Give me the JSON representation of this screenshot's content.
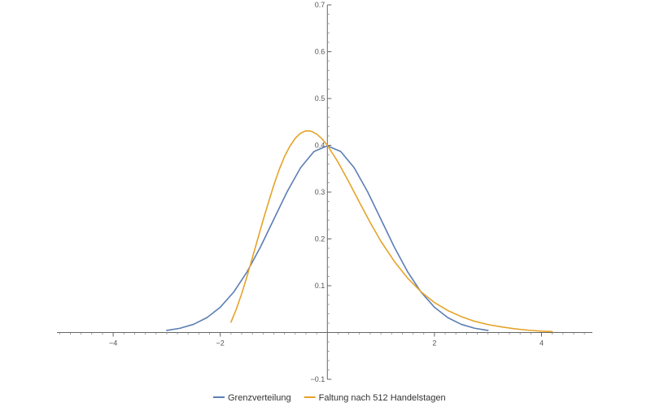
{
  "chart_data": {
    "type": "line",
    "title": "",
    "xlabel": "",
    "ylabel": "",
    "xlim": [
      -5.05,
      4.95
    ],
    "ylim": [
      -0.1,
      0.7
    ],
    "x_ticks": [
      -4,
      -2,
      2,
      4
    ],
    "x_tick_labels": [
      "-4",
      "-2",
      "2",
      "4"
    ],
    "y_ticks": [
      -0.1,
      0.1,
      0.2,
      0.3,
      0.4,
      0.5,
      0.6,
      0.7
    ],
    "y_tick_labels": [
      "-0.1",
      "0.1",
      "0.2",
      "0.3",
      "0.4",
      "0.5",
      "0.6",
      "0.7"
    ],
    "grid": false,
    "legend_position": "bottom",
    "series": [
      {
        "name": "Grenzverteilung",
        "color": "#5b7eb5",
        "x": [
          -3.0,
          -2.75,
          -2.5,
          -2.25,
          -2.0,
          -1.75,
          -1.5,
          -1.25,
          -1.0,
          -0.75,
          -0.5,
          -0.25,
          0.0,
          0.25,
          0.5,
          0.75,
          1.0,
          1.25,
          1.5,
          1.75,
          2.0,
          2.25,
          2.5,
          2.75,
          3.0
        ],
        "y": [
          0.0044,
          0.0091,
          0.0175,
          0.0317,
          0.054,
          0.0863,
          0.1295,
          0.1826,
          0.242,
          0.3011,
          0.3521,
          0.3867,
          0.3989,
          0.3867,
          0.3521,
          0.3011,
          0.242,
          0.1826,
          0.1295,
          0.0863,
          0.054,
          0.0317,
          0.0175,
          0.0091,
          0.0044
        ]
      },
      {
        "name": "Faltung nach 512 Handelstagen",
        "color": "#e5a32a",
        "x": [
          -1.8,
          -1.7,
          -1.6,
          -1.5,
          -1.4,
          -1.3,
          -1.2,
          -1.1,
          -1.0,
          -0.9,
          -0.8,
          -0.7,
          -0.6,
          -0.5,
          -0.4,
          -0.3,
          -0.2,
          -0.1,
          0.0,
          0.2,
          0.4,
          0.6,
          0.8,
          1.0,
          1.25,
          1.5,
          1.75,
          2.0,
          2.25,
          2.5,
          2.75,
          3.0,
          3.25,
          3.5,
          3.75,
          4.0,
          4.2
        ],
        "y": [
          0.022,
          0.05,
          0.083,
          0.12,
          0.16,
          0.2,
          0.24,
          0.278,
          0.315,
          0.348,
          0.376,
          0.398,
          0.415,
          0.426,
          0.431,
          0.43,
          0.424,
          0.414,
          0.4,
          0.364,
          0.322,
          0.278,
          0.235,
          0.195,
          0.152,
          0.116,
          0.087,
          0.064,
          0.047,
          0.034,
          0.024,
          0.017,
          0.012,
          0.008,
          0.005,
          0.003,
          0.002
        ]
      }
    ]
  }
}
